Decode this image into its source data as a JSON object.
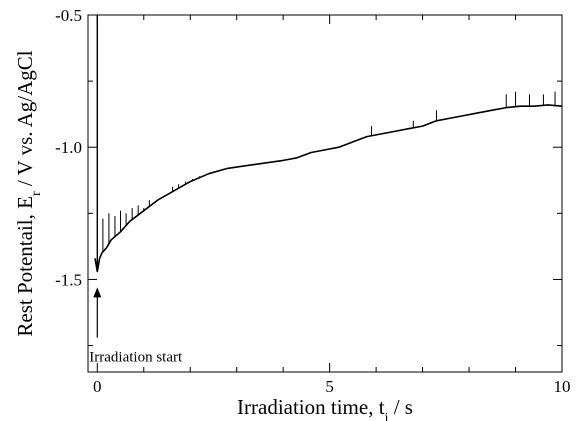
{
  "chart_data": {
    "type": "line",
    "xlabel": {
      "main": "Irradiation time, t",
      "sub": "i",
      "unit": " / s"
    },
    "ylabel": {
      "main": "Rest Potentail, E",
      "sub": "r",
      "unit": " / V vs. Ag/AgCl"
    },
    "xlim": [
      -0.2,
      10
    ],
    "ylim": [
      -1.85,
      -0.5
    ],
    "x_ticks": [
      0,
      5,
      10
    ],
    "x_tick_labels": [
      "0",
      "5",
      "10"
    ],
    "y_ticks": [
      -0.5,
      -1.0,
      -1.5
    ],
    "y_tick_labels": [
      "-0.5",
      "-1.0",
      "-1.5"
    ],
    "grid": false,
    "legend": "none",
    "line_color": "#000000",
    "series": [
      {
        "x": [
          -0.05,
          0.0,
          0.02,
          0.05,
          0.1,
          0.2,
          0.3,
          0.5,
          0.7,
          1.0,
          1.3,
          1.6,
          2.0,
          2.4,
          2.8,
          3.2,
          3.6,
          4.0,
          4.3,
          4.6,
          4.9,
          5.2,
          5.5,
          5.8,
          6.1,
          6.4,
          6.7,
          7.0,
          7.3,
          7.6,
          7.9,
          8.2,
          8.5,
          8.8,
          9.1,
          9.4,
          9.7,
          10.0
        ],
        "y": [
          -1.42,
          -1.47,
          -1.45,
          -1.42,
          -1.4,
          -1.38,
          -1.35,
          -1.32,
          -1.28,
          -1.24,
          -1.2,
          -1.17,
          -1.13,
          -1.1,
          -1.08,
          -1.07,
          -1.06,
          -1.05,
          -1.04,
          -1.02,
          -1.01,
          -1.0,
          -0.98,
          -0.96,
          -0.95,
          -0.94,
          -0.93,
          -0.92,
          -0.9,
          -0.89,
          -0.88,
          -0.87,
          -0.86,
          -0.85,
          -0.845,
          -0.845,
          -0.84,
          -0.845
        ]
      }
    ],
    "spikes": [
      {
        "x": 0.12,
        "y": -1.27
      },
      {
        "x": 0.25,
        "y": -1.25
      },
      {
        "x": 0.38,
        "y": -1.26
      },
      {
        "x": 0.5,
        "y": -1.24
      },
      {
        "x": 0.62,
        "y": -1.25
      },
      {
        "x": 0.75,
        "y": -1.23
      },
      {
        "x": 0.88,
        "y": -1.22
      },
      {
        "x": 1.0,
        "y": -1.23
      },
      {
        "x": 1.12,
        "y": -1.2
      },
      {
        "x": 1.25,
        "y": -1.21
      },
      {
        "x": 1.38,
        "y": -1.19
      },
      {
        "x": 1.5,
        "y": -1.18
      },
      {
        "x": 1.62,
        "y": -1.15
      },
      {
        "x": 1.75,
        "y": -1.14
      },
      {
        "x": 1.9,
        "y": -1.13
      },
      {
        "x": 2.05,
        "y": -1.12
      },
      {
        "x": 2.2,
        "y": -1.11
      },
      {
        "x": 2.4,
        "y": -1.1
      },
      {
        "x": 5.9,
        "y": -0.92
      },
      {
        "x": 6.8,
        "y": -0.9
      },
      {
        "x": 7.3,
        "y": -0.86
      },
      {
        "x": 8.8,
        "y": -0.8
      },
      {
        "x": 9.0,
        "y": -0.79
      },
      {
        "x": 9.3,
        "y": -0.8
      },
      {
        "x": 9.6,
        "y": -0.8
      },
      {
        "x": 9.85,
        "y": -0.79
      }
    ],
    "initial_spike": {
      "x": 0.0,
      "y_from": -1.47,
      "y_to": -0.5
    },
    "annotation": {
      "text": "Irradiation start",
      "arrow_x": 0.0,
      "arrow_y_from": -1.72,
      "arrow_y_to": -1.53
    }
  }
}
